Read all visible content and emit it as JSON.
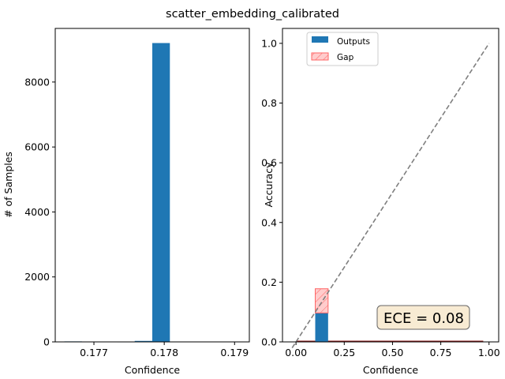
{
  "figure": {
    "title": "scatter_embedding_calibrated"
  },
  "chart_data": [
    {
      "type": "bar",
      "subplot": "histogram",
      "title": "",
      "xlabel": "Confidence",
      "ylabel": "# of Samples",
      "xlim": [
        0.17645,
        0.17921
      ],
      "ylim": [
        0,
        9650
      ],
      "xticks": [
        0.177,
        0.178,
        0.179
      ],
      "xtick_labels": [
        "0.177",
        "0.178",
        "0.179"
      ],
      "yticks": [
        0,
        2000,
        4000,
        6000,
        8000
      ],
      "ytick_labels": [
        "0",
        "2000",
        "4000",
        "6000",
        "8000"
      ],
      "bin_width": 0.00025,
      "bins": [
        {
          "left": 0.17658,
          "count": 15
        },
        {
          "left": 0.17733,
          "count": 2
        },
        {
          "left": 0.17758,
          "count": 30
        },
        {
          "left": 0.17783,
          "count": 9200
        }
      ],
      "bar_color": "#1f77b4"
    },
    {
      "type": "bar",
      "subplot": "reliability",
      "title": "",
      "xlabel": "Confidence",
      "ylabel": "Accuracy",
      "xlim": [
        -0.07,
        1.05
      ],
      "ylim": [
        0,
        1.05
      ],
      "xticks": [
        0.0,
        0.25,
        0.5,
        0.75,
        1.0
      ],
      "xtick_labels": [
        "0.00",
        "0.25",
        "0.50",
        "0.75",
        "1.00"
      ],
      "yticks": [
        0.0,
        0.2,
        0.4,
        0.6,
        0.8,
        1.0
      ],
      "ytick_labels": [
        "0.0",
        "0.2",
        "0.4",
        "0.6",
        "0.8",
        "1.0"
      ],
      "bin_width": 0.0667,
      "outputs": [
        {
          "center": 0.133,
          "accuracy": 0.097
        }
      ],
      "gaps": [
        {
          "center": 0.133,
          "from": 0.097,
          "to": 0.178
        }
      ],
      "baseline_line": {
        "from": 0.0,
        "to": 0.97,
        "value": 0.0
      },
      "diagonal": [
        [
          -0.02,
          -0.02
        ],
        [
          1.0,
          1.0
        ]
      ],
      "legend": {
        "placement": "top-left",
        "entries": [
          {
            "label": "Outputs",
            "color": "#1f77b4"
          },
          {
            "label": "Gap",
            "color": "#ff9999"
          }
        ]
      },
      "annotation": {
        "text": "ECE = 0.08",
        "placement": "bottom-right"
      },
      "colors": {
        "outputs": "#1f77b4",
        "gap_fill": "#ffcccc",
        "gap_edge": "#ff6666",
        "diagonal": "#7f7f7f",
        "baseline": "#8b1a1a",
        "annotation_bg": "#f8ebd3"
      }
    }
  ]
}
